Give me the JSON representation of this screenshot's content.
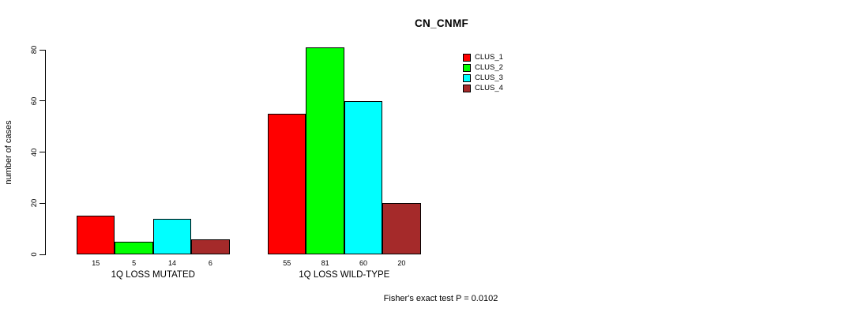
{
  "chart_data": {
    "type": "bar",
    "title": "CN_CNMF",
    "ylabel": "number of cases",
    "xlabel": "",
    "categories": [
      "1Q LOSS MUTATED",
      "1Q LOSS WILD-TYPE"
    ],
    "series": [
      {
        "name": "CLUS_1",
        "color": "#FF0000",
        "values": [
          15,
          55
        ]
      },
      {
        "name": "CLUS_2",
        "color": "#00FF00",
        "values": [
          5,
          81
        ]
      },
      {
        "name": "CLUS_3",
        "color": "#00FFFF",
        "values": [
          14,
          60
        ]
      },
      {
        "name": "CLUS_4",
        "color": "#A52A2A",
        "values": [
          6,
          20
        ]
      }
    ],
    "bar_value_labels": [
      [
        "15",
        "5",
        "14",
        "6"
      ],
      [
        "55",
        "81",
        "60",
        "20"
      ]
    ],
    "yticks": [
      0,
      20,
      40,
      60,
      80
    ],
    "ylim": [
      0,
      80
    ],
    "grid": false,
    "legend_position": "top-right",
    "annotation": "Fisher's exact test P = 0.0102",
    "axis_color": "#000000",
    "background_color": "#ffffff"
  }
}
